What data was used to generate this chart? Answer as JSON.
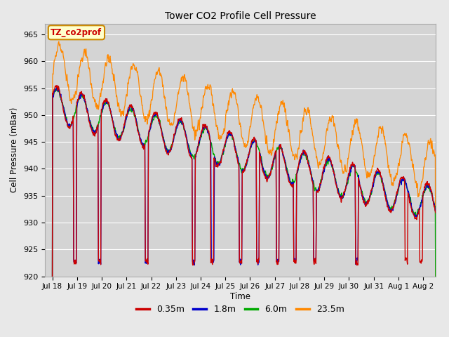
{
  "title": "Tower CO2 Profile Cell Pressure",
  "ylabel": "Cell Pressure (mBar)",
  "xlabel": "Time",
  "ylim": [
    920,
    967
  ],
  "background_color": "#e8e8e8",
  "axes_facecolor": "#d4d4d4",
  "grid_color": "#ffffff",
  "legend_label": "TZ_co2prof",
  "legend_bg": "#ffffcc",
  "legend_border": "#cc8800",
  "legend_text_color": "#cc0000",
  "series_colors": [
    "#cc0000",
    "#0000cc",
    "#00aa00",
    "#ff8800"
  ],
  "series_labels": [
    "0.35m",
    "1.8m",
    "6.0m",
    "23.5m"
  ],
  "tick_labels": [
    "Jul 18",
    "Jul 19",
    "Jul 20",
    "Jul 21",
    "Jul 22",
    "Jul 23",
    "Jul 24",
    "Jul 25",
    "Jul 26",
    "Jul 27",
    "Jul 28",
    "Jul 29",
    "Jul 30",
    "Jul 31",
    "Aug 1",
    "Aug 2"
  ],
  "tick_positions": [
    0,
    1,
    2,
    3,
    4,
    5,
    6,
    7,
    8,
    9,
    10,
    11,
    12,
    13,
    14,
    15
  ],
  "yticks": [
    920,
    925,
    930,
    935,
    940,
    945,
    950,
    955,
    960,
    965
  ]
}
